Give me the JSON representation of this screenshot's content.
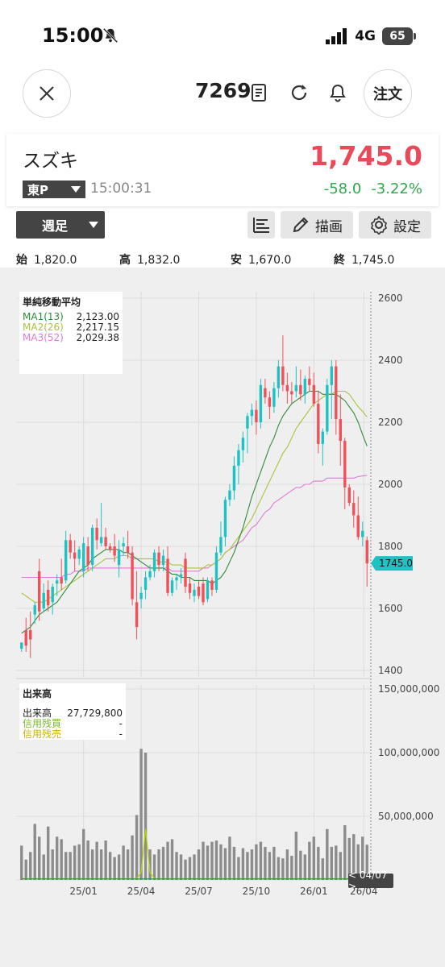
{
  "status_bar": {
    "time": "15:00",
    "network": "4G",
    "battery": "65"
  },
  "header": {
    "ticker": "7269",
    "order_label": "注文"
  },
  "quote": {
    "name": "スズキ",
    "market": "東P",
    "time": "15:00:31",
    "price": "1,745.0",
    "change": "-58.0",
    "change_pct": "-3.22%"
  },
  "toolbar": {
    "period": "週足",
    "draw_label": "描画",
    "settings_label": "設定"
  },
  "ohlc": {
    "open_label": "始",
    "open": "1,820.0",
    "high_label": "高",
    "high": "1,832.0",
    "low_label": "安",
    "low": "1,670.0",
    "close_label": "終",
    "close": "1,745.0"
  },
  "ma_legend": {
    "title": "単純移動平均",
    "items": [
      {
        "label": "MA1(13)",
        "value": "2,123.00",
        "color": "#2e8b3a"
      },
      {
        "label": "MA2(26)",
        "value": "2,217.15",
        "color": "#a8c43a"
      },
      {
        "label": "MA3(52)",
        "value": "2,029.38",
        "color": "#e07ad6"
      }
    ]
  },
  "vol_legend": {
    "title": "出来高",
    "items": [
      {
        "label": "出来高",
        "value": "27,729,800",
        "color": "#222222"
      },
      {
        "label": "信用残買",
        "value": "-",
        "color": "#7ab82e"
      },
      {
        "label": "信用残売",
        "value": "-",
        "color": "#c8b400"
      }
    ]
  },
  "price_axis": [
    "2600",
    "2400",
    "2200",
    "2000",
    "1800",
    "1600",
    "1400"
  ],
  "volume_axis": [
    "150,000,000",
    "100,000,000",
    "50,000,000",
    "0"
  ],
  "time_axis": [
    "25/01",
    "25/04",
    "25/07",
    "25/10",
    "26/01",
    "26/04"
  ],
  "last_price_tag": "1745.0",
  "cursor_date": "< 04/07 >",
  "colors": {
    "up": "#1fc2c2",
    "down": "#f0505a",
    "volume": "#8c8c8c",
    "accent": "#e84a5a",
    "positive_change": "#2fa84f"
  },
  "chart_data": {
    "type": "candlestick",
    "price_range": [
      1400,
      2600
    ],
    "volume_range": [
      0,
      150000000
    ],
    "candles": [
      {
        "o": 1470,
        "h": 1490,
        "l": 1460,
        "c": 1490
      },
      {
        "o": 1530,
        "h": 1570,
        "l": 1460,
        "c": 1480
      },
      {
        "o": 1530,
        "h": 1590,
        "l": 1440,
        "c": 1500
      },
      {
        "o": 1580,
        "h": 1620,
        "l": 1550,
        "c": 1610
      },
      {
        "o": 1720,
        "h": 1760,
        "l": 1560,
        "c": 1590
      },
      {
        "o": 1600,
        "h": 1680,
        "l": 1590,
        "c": 1650
      },
      {
        "o": 1660,
        "h": 1690,
        "l": 1590,
        "c": 1610
      },
      {
        "o": 1620,
        "h": 1680,
        "l": 1580,
        "c": 1670
      },
      {
        "o": 1680,
        "h": 1710,
        "l": 1640,
        "c": 1690
      },
      {
        "o": 1700,
        "h": 1760,
        "l": 1660,
        "c": 1680
      },
      {
        "o": 1690,
        "h": 1850,
        "l": 1680,
        "c": 1820
      },
      {
        "o": 1820,
        "h": 1840,
        "l": 1760,
        "c": 1780
      },
      {
        "o": 1780,
        "h": 1820,
        "l": 1720,
        "c": 1760
      },
      {
        "o": 1760,
        "h": 1800,
        "l": 1740,
        "c": 1790
      },
      {
        "o": 1720,
        "h": 1830,
        "l": 1700,
        "c": 1810
      },
      {
        "o": 1800,
        "h": 1830,
        "l": 1720,
        "c": 1740
      },
      {
        "o": 1740,
        "h": 1870,
        "l": 1720,
        "c": 1860
      },
      {
        "o": 1860,
        "h": 1890,
        "l": 1790,
        "c": 1820
      },
      {
        "o": 1810,
        "h": 1940,
        "l": 1800,
        "c": 1830
      },
      {
        "o": 1830,
        "h": 1860,
        "l": 1790,
        "c": 1800
      },
      {
        "o": 1800,
        "h": 1810,
        "l": 1780,
        "c": 1790
      },
      {
        "o": 1800,
        "h": 1840,
        "l": 1750,
        "c": 1770
      },
      {
        "o": 1740,
        "h": 1820,
        "l": 1700,
        "c": 1790
      },
      {
        "o": 1800,
        "h": 1830,
        "l": 1770,
        "c": 1810
      },
      {
        "o": 1800,
        "h": 1850,
        "l": 1760,
        "c": 1780
      },
      {
        "o": 1780,
        "h": 1800,
        "l": 1610,
        "c": 1630
      },
      {
        "o": 1620,
        "h": 1720,
        "l": 1500,
        "c": 1540
      },
      {
        "o": 1630,
        "h": 1670,
        "l": 1600,
        "c": 1650
      },
      {
        "o": 1660,
        "h": 1720,
        "l": 1630,
        "c": 1700
      },
      {
        "o": 1700,
        "h": 1740,
        "l": 1690,
        "c": 1720
      },
      {
        "o": 1720,
        "h": 1790,
        "l": 1700,
        "c": 1780
      },
      {
        "o": 1780,
        "h": 1800,
        "l": 1720,
        "c": 1740
      },
      {
        "o": 1740,
        "h": 1790,
        "l": 1720,
        "c": 1770
      },
      {
        "o": 1760,
        "h": 1800,
        "l": 1640,
        "c": 1650
      },
      {
        "o": 1650,
        "h": 1700,
        "l": 1640,
        "c": 1690
      },
      {
        "o": 1690,
        "h": 1710,
        "l": 1660,
        "c": 1700
      },
      {
        "o": 1700,
        "h": 1730,
        "l": 1680,
        "c": 1710
      },
      {
        "o": 1760,
        "h": 1780,
        "l": 1650,
        "c": 1670
      },
      {
        "o": 1680,
        "h": 1700,
        "l": 1630,
        "c": 1650
      },
      {
        "o": 1640,
        "h": 1680,
        "l": 1620,
        "c": 1660
      },
      {
        "o": 1670,
        "h": 1690,
        "l": 1630,
        "c": 1640
      },
      {
        "o": 1680,
        "h": 1700,
        "l": 1610,
        "c": 1620
      },
      {
        "o": 1630,
        "h": 1700,
        "l": 1620,
        "c": 1690
      },
      {
        "o": 1690,
        "h": 1700,
        "l": 1640,
        "c": 1660
      },
      {
        "o": 1660,
        "h": 1800,
        "l": 1650,
        "c": 1780
      },
      {
        "o": 1780,
        "h": 1880,
        "l": 1770,
        "c": 1830
      },
      {
        "o": 1830,
        "h": 1960,
        "l": 1800,
        "c": 1950
      },
      {
        "o": 1950,
        "h": 2000,
        "l": 1930,
        "c": 1980
      },
      {
        "o": 1980,
        "h": 2090,
        "l": 1950,
        "c": 2060
      },
      {
        "o": 2060,
        "h": 2130,
        "l": 2000,
        "c": 2110
      },
      {
        "o": 2110,
        "h": 2170,
        "l": 2070,
        "c": 2150
      },
      {
        "o": 2180,
        "h": 2230,
        "l": 2100,
        "c": 2220
      },
      {
        "o": 2220,
        "h": 2260,
        "l": 2190,
        "c": 2240
      },
      {
        "o": 2240,
        "h": 2270,
        "l": 2160,
        "c": 2200
      },
      {
        "o": 2200,
        "h": 2340,
        "l": 2180,
        "c": 2320
      },
      {
        "o": 2310,
        "h": 2340,
        "l": 2260,
        "c": 2280
      },
      {
        "o": 2280,
        "h": 2300,
        "l": 2210,
        "c": 2250
      },
      {
        "o": 2250,
        "h": 2330,
        "l": 2230,
        "c": 2310
      },
      {
        "o": 2310,
        "h": 2400,
        "l": 2280,
        "c": 2380
      },
      {
        "o": 2380,
        "h": 2480,
        "l": 2300,
        "c": 2320
      },
      {
        "o": 2320,
        "h": 2360,
        "l": 2260,
        "c": 2300
      },
      {
        "o": 2300,
        "h": 2330,
        "l": 2260,
        "c": 2290
      },
      {
        "o": 2300,
        "h": 2380,
        "l": 2280,
        "c": 2320
      },
      {
        "o": 2320,
        "h": 2370,
        "l": 2270,
        "c": 2290
      },
      {
        "o": 2290,
        "h": 2350,
        "l": 2260,
        "c": 2340
      },
      {
        "o": 2340,
        "h": 2380,
        "l": 2300,
        "c": 2320
      },
      {
        "o": 2320,
        "h": 2360,
        "l": 2250,
        "c": 2260
      },
      {
        "o": 2260,
        "h": 2300,
        "l": 2100,
        "c": 2130
      },
      {
        "o": 2130,
        "h": 2180,
        "l": 2060,
        "c": 2170
      },
      {
        "o": 2170,
        "h": 2340,
        "l": 2160,
        "c": 2320
      },
      {
        "o": 2320,
        "h": 2400,
        "l": 2210,
        "c": 2380
      },
      {
        "o": 2380,
        "h": 2400,
        "l": 2160,
        "c": 2210
      },
      {
        "o": 2210,
        "h": 2290,
        "l": 2060,
        "c": 2140
      },
      {
        "o": 2140,
        "h": 2150,
        "l": 1920,
        "c": 1990
      },
      {
        "o": 1990,
        "h": 2000,
        "l": 1930,
        "c": 1940
      },
      {
        "o": 1940,
        "h": 1980,
        "l": 1860,
        "c": 1900
      },
      {
        "o": 1900,
        "h": 1960,
        "l": 1820,
        "c": 1830
      },
      {
        "o": 1830,
        "h": 1880,
        "l": 1800,
        "c": 1850
      },
      {
        "o": 1820,
        "h": 1832,
        "l": 1670,
        "c": 1745
      }
    ],
    "volume": [
      27,
      16,
      22,
      44,
      34,
      20,
      42,
      24,
      34,
      32,
      22,
      22,
      27,
      28,
      40,
      31,
      24,
      30,
      24,
      31,
      22,
      18,
      20,
      27,
      24,
      35,
      51,
      103,
      100,
      24,
      20,
      24,
      26,
      30,
      32,
      22,
      20,
      16,
      18,
      20,
      24,
      30,
      27,
      30,
      31,
      28,
      25,
      34,
      26,
      18,
      25,
      22,
      24,
      28,
      30,
      26,
      22,
      26,
      18,
      17,
      24,
      19,
      38,
      23,
      20,
      30,
      34,
      26,
      17,
      40,
      26,
      27,
      22,
      43,
      33,
      36,
      28,
      34,
      27.7
    ],
    "ma1": [
      1520,
      1530,
      1540,
      1560,
      1580,
      1590,
      1600,
      1610,
      1620,
      1640,
      1660,
      1680,
      1700,
      1720,
      1730,
      1740,
      1760,
      1770,
      1780,
      1790,
      1790,
      1790,
      1790,
      1780,
      1780,
      1770,
      1760,
      1750,
      1740,
      1730,
      1730,
      1730,
      1730,
      1720,
      1710,
      1710,
      1700,
      1700,
      1700,
      1690,
      1690,
      1690,
      1690,
      1680,
      1690,
      1700,
      1720,
      1750,
      1780,
      1820,
      1860,
      1910,
      1960,
      2000,
      2040,
      2080,
      2120,
      2150,
      2190,
      2220,
      2240,
      2260,
      2270,
      2280,
      2290,
      2300,
      2300,
      2300,
      2290,
      2290,
      2290,
      2290,
      2280,
      2270,
      2250,
      2230,
      2200,
      2160,
      2123
    ],
    "ma2": [
      1650,
      1640,
      1630,
      1620,
      1620,
      1620,
      1630,
      1640,
      1650,
      1660,
      1670,
      1680,
      1690,
      1700,
      1710,
      1720,
      1730,
      1740,
      1750,
      1760,
      1760,
      1760,
      1770,
      1770,
      1770,
      1760,
      1760,
      1760,
      1760,
      1760,
      1760,
      1750,
      1750,
      1750,
      1740,
      1740,
      1740,
      1730,
      1730,
      1730,
      1730,
      1730,
      1740,
      1740,
      1750,
      1760,
      1780,
      1790,
      1810,
      1830,
      1850,
      1870,
      1890,
      1920,
      1950,
      1980,
      2010,
      2040,
      2070,
      2100,
      2120,
      2150,
      2180,
      2200,
      2220,
      2240,
      2260,
      2270,
      2280,
      2290,
      2290,
      2300,
      2300,
      2300,
      2290,
      2270,
      2250,
      2235,
      2217
    ],
    "ma3": [
      1700,
      1700,
      1700,
      1700,
      1700,
      1700,
      1700,
      1700,
      1700,
      1700,
      1710,
      1710,
      1720,
      1720,
      1720,
      1730,
      1730,
      1730,
      1730,
      1730,
      1730,
      1730,
      1730,
      1730,
      1730,
      1730,
      1730,
      1730,
      1730,
      1730,
      1730,
      1730,
      1730,
      1730,
      1720,
      1720,
      1720,
      1720,
      1720,
      1720,
      1720,
      1730,
      1730,
      1740,
      1750,
      1760,
      1780,
      1790,
      1800,
      1810,
      1820,
      1840,
      1860,
      1870,
      1890,
      1910,
      1920,
      1940,
      1950,
      1960,
      1970,
      1980,
      1990,
      1990,
      2000,
      2000,
      2010,
      2010,
      2010,
      2020,
      2020,
      2020,
      2020,
      2020,
      2020,
      2020,
      2025,
      2027,
      2029
    ]
  }
}
